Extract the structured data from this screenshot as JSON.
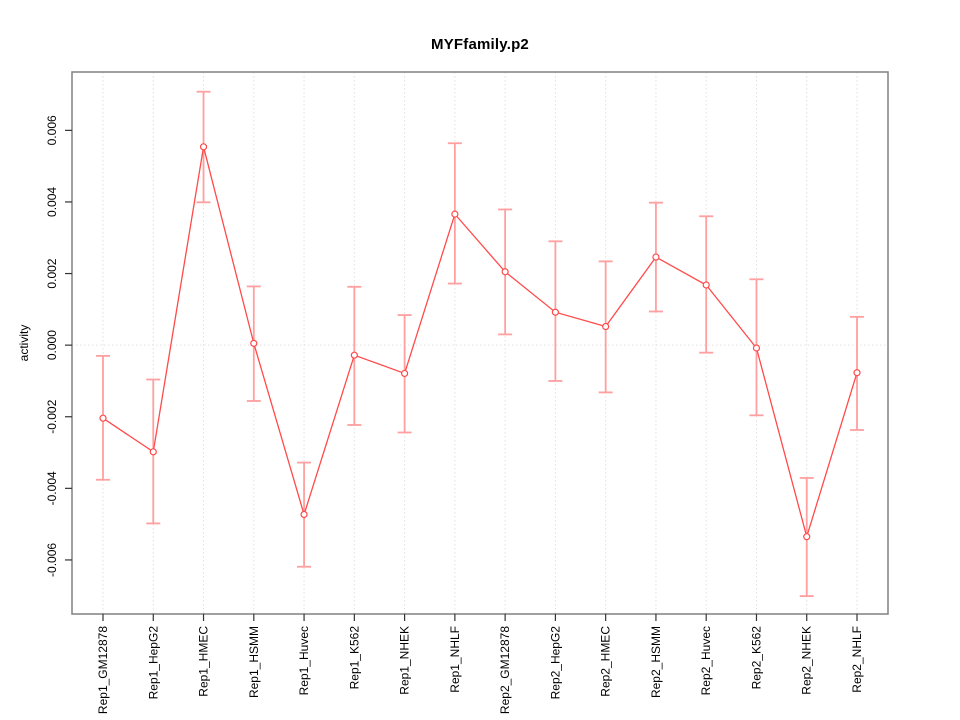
{
  "figure": {
    "background": "#ffffff"
  },
  "chart_data": {
    "type": "line",
    "title": "MYFfamily.p2",
    "xlabel": "",
    "ylabel": "activity",
    "legend": "none",
    "marker": "open-circle",
    "grid": {
      "vertical_gridlines": "dotted at every category",
      "horizontal_zero_line": true
    },
    "categories": [
      "Rep1_GM12878",
      "Rep1_HepG2",
      "Rep1_HMEC",
      "Rep1_HSMM",
      "Rep1_Huvec",
      "Rep1_K562",
      "Rep1_NHEK",
      "Rep1_NHLF",
      "Rep2_GM12878",
      "Rep2_HepG2",
      "Rep2_HMEC",
      "Rep2_HSMM",
      "Rep2_Huvec",
      "Rep2_K562",
      "Rep2_NHEK",
      "Rep2_NHLF"
    ],
    "series": [
      {
        "name": "activity",
        "values": [
          -0.00204,
          -0.00298,
          0.00554,
          5e-05,
          -0.00473,
          -0.00028,
          -0.00079,
          0.00366,
          0.00205,
          0.00092,
          0.00052,
          0.00246,
          0.00168,
          -8e-05,
          -0.00535,
          -0.00077
        ],
        "ci_low": [
          -0.00376,
          -0.00498,
          0.00399,
          -0.00156,
          -0.00619,
          -0.00223,
          -0.00244,
          0.00172,
          0.0003,
          -0.001,
          -0.00132,
          0.00094,
          -0.00021,
          -0.00196,
          -0.00701,
          -0.00237
        ],
        "ci_high": [
          -0.0003,
          -0.00096,
          0.00708,
          0.00164,
          -0.00328,
          0.00163,
          0.00084,
          0.00564,
          0.00379,
          0.0029,
          0.00234,
          0.00398,
          0.0036,
          0.00184,
          -0.00371,
          0.00079
        ]
      }
    ],
    "yticks": {
      "values": [
        -0.006,
        -0.004,
        -0.002,
        0.0,
        0.002,
        0.004,
        0.006
      ],
      "labels": [
        "-0.006",
        "-0.004",
        "-0.002",
        "0.000",
        "0.002",
        "0.004",
        "0.006"
      ]
    },
    "ylim": [
      -0.00751,
      0.00763
    ],
    "colors": {
      "line": "#ff4a4a",
      "error_bar": "#ff9f9f",
      "grid": "#e0e0e0",
      "box": "#808080",
      "text": "#000000"
    }
  }
}
